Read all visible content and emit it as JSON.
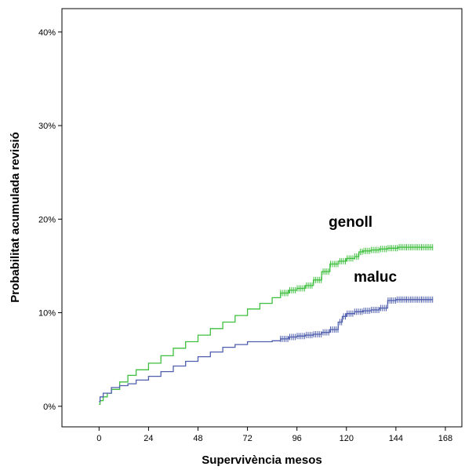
{
  "chart_data": {
    "type": "line",
    "xlabel": "Supervivència mesos",
    "ylabel": "Probabilitat acumulada revisió",
    "xlim": [
      -18,
      176
    ],
    "ylim": [
      -2.2,
      42.5
    ],
    "xticks": [
      0,
      24,
      48,
      72,
      96,
      120,
      144,
      168
    ],
    "xtick_labels": [
      "0",
      "24",
      "48",
      "72",
      "96",
      "120",
      "144",
      "168"
    ],
    "yticks": [
      0,
      10,
      20,
      30,
      40
    ],
    "ytick_labels": [
      "0%",
      "10%",
      "20%",
      "30%",
      "40%"
    ],
    "grid": false,
    "legend": "none",
    "series": [
      {
        "name": "genoll",
        "color": "#3fbf3f",
        "step": true,
        "x": [
          0,
          0.5,
          2,
          4,
          6,
          10,
          14,
          18,
          24,
          30,
          36,
          42,
          48,
          54,
          60,
          66,
          72,
          78,
          84,
          88,
          92,
          96,
          100,
          104,
          108,
          112,
          116,
          120,
          124,
          126,
          128,
          132,
          136,
          140,
          145,
          150,
          156,
          162
        ],
        "y": [
          0.2,
          0.6,
          1.0,
          1.4,
          1.8,
          2.6,
          3.3,
          3.9,
          4.6,
          5.4,
          6.2,
          6.9,
          7.6,
          8.3,
          9.0,
          9.7,
          10.4,
          11.0,
          11.6,
          12.1,
          12.4,
          12.6,
          12.9,
          13.5,
          14.4,
          15.2,
          15.5,
          15.8,
          16.0,
          16.5,
          16.6,
          16.7,
          16.8,
          16.9,
          17.0,
          17.0,
          17.0,
          17.0
        ],
        "censor_from": 88
      },
      {
        "name": "maluc",
        "color": "#4f5fad",
        "step": true,
        "x": [
          0,
          0.5,
          2,
          6,
          10,
          14,
          18,
          24,
          30,
          36,
          42,
          48,
          54,
          60,
          66,
          72,
          78,
          84,
          88,
          92,
          96,
          100,
          104,
          108,
          112,
          116,
          118,
          120,
          124,
          128,
          132,
          136,
          140,
          144,
          150,
          156,
          162
        ],
        "y": [
          0.5,
          1.0,
          1.4,
          2.0,
          2.2,
          2.4,
          2.8,
          3.2,
          3.7,
          4.3,
          4.8,
          5.3,
          5.8,
          6.3,
          6.6,
          6.9,
          6.9,
          7.0,
          7.2,
          7.4,
          7.5,
          7.6,
          7.7,
          7.9,
          8.2,
          9.0,
          9.6,
          9.9,
          10.1,
          10.2,
          10.3,
          10.5,
          11.3,
          11.4,
          11.4,
          11.4,
          11.4
        ],
        "censor_from": 88
      }
    ],
    "annotations": [
      {
        "text": "genoll",
        "x": 122,
        "y": 19.2
      },
      {
        "text": "maluc",
        "x": 134,
        "y": 13.3
      }
    ]
  }
}
